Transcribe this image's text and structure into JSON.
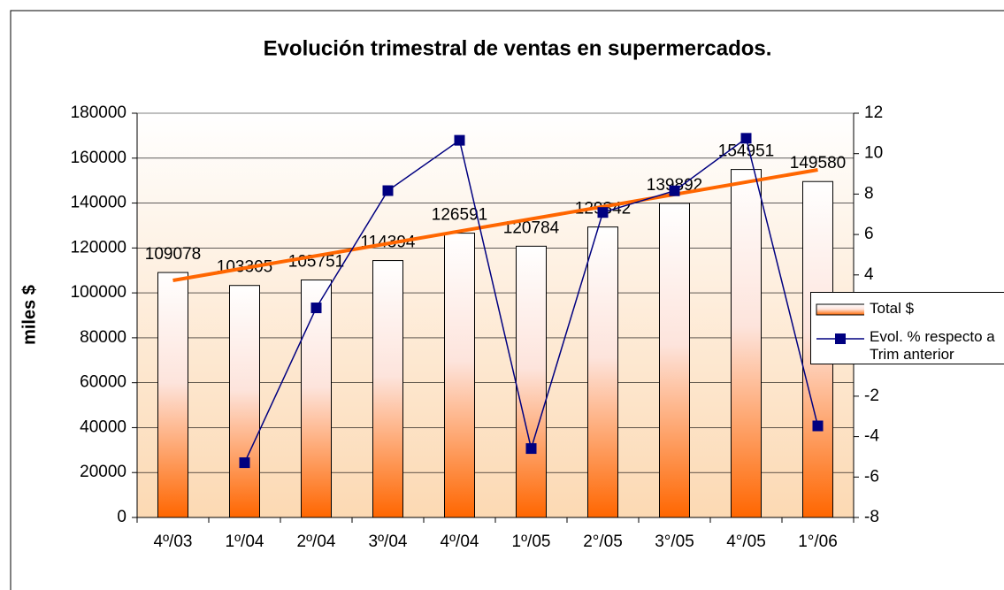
{
  "chart_data": {
    "type": "bar_line",
    "title": "Evolución trimestral de ventas en supermercados.",
    "ylabel": "miles $",
    "categories": [
      "4º/03",
      "1º/04",
      "2º/04",
      "3º/04",
      "4º/04",
      "1º/05",
      "2°/05",
      "3°/05",
      "4°/05",
      "1°/06"
    ],
    "series": [
      {
        "name": "Total $",
        "color": "#ff6600",
        "type": "bar",
        "values": [
          109078,
          103305,
          105751,
          114394,
          126591,
          120784,
          129342,
          139892,
          154951,
          149580
        ]
      },
      {
        "name": "Evol. % respecto a Trim anterior",
        "color": "#000080",
        "type": "line",
        "axis": "y2",
        "values": [
          null,
          -5.29,
          2.37,
          8.17,
          10.66,
          -4.59,
          7.09,
          8.16,
          10.76,
          -3.47
        ]
      }
    ],
    "trendline": {
      "color": "#ff6600",
      "values": [
        105560,
        154800
      ]
    },
    "ylim": [
      0,
      180000
    ],
    "yticks": [
      0,
      20000,
      40000,
      60000,
      80000,
      100000,
      120000,
      140000,
      160000,
      180000
    ],
    "y2lim": [
      -8,
      12
    ],
    "y2ticks": [
      -8,
      -6,
      -4,
      -2,
      0,
      2,
      4,
      6,
      8,
      10,
      12
    ],
    "legend": "right"
  }
}
